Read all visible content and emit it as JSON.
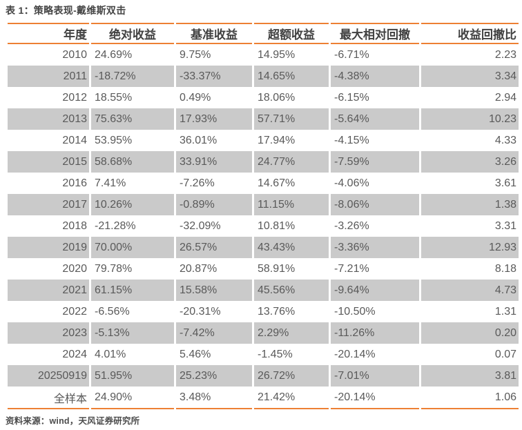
{
  "title": "表 1：策略表现-戴维斯双击",
  "source": "资料来源：wind，天风证券研究所",
  "colors": {
    "accent": "#ED8033",
    "row_alt": "#CACACA",
    "header_text": "#404040",
    "body_text": "#595959"
  },
  "table": {
    "columns": [
      "年度",
      "绝对收益",
      "基准收益",
      "超额收益",
      "最大相对回撤",
      "收益回撤比"
    ],
    "rows": [
      [
        "2010",
        "24.69%",
        "9.75%",
        "14.95%",
        "-6.71%",
        "2.23"
      ],
      [
        "2011",
        "-18.72%",
        "-33.37%",
        "14.65%",
        "-4.38%",
        "3.34"
      ],
      [
        "2012",
        "18.55%",
        "0.49%",
        "18.06%",
        "-6.15%",
        "2.94"
      ],
      [
        "2013",
        "75.63%",
        "17.93%",
        "57.71%",
        "-5.64%",
        "10.23"
      ],
      [
        "2014",
        "53.95%",
        "36.01%",
        "17.94%",
        "-4.15%",
        "4.33"
      ],
      [
        "2015",
        "58.68%",
        "33.91%",
        "24.77%",
        "-7.59%",
        "3.26"
      ],
      [
        "2016",
        "7.41%",
        "-7.26%",
        "14.67%",
        "-4.06%",
        "3.61"
      ],
      [
        "2017",
        "10.26%",
        "-0.89%",
        "11.15%",
        "-8.06%",
        "1.38"
      ],
      [
        "2018",
        "-21.28%",
        "-32.09%",
        "10.81%",
        "-3.26%",
        "3.31"
      ],
      [
        "2019",
        "70.00%",
        "26.57%",
        "43.43%",
        "-3.36%",
        "12.93"
      ],
      [
        "2020",
        "79.78%",
        "20.87%",
        "58.91%",
        "-7.21%",
        "8.18"
      ],
      [
        "2021",
        "61.15%",
        "15.58%",
        "45.56%",
        "-9.64%",
        "4.73"
      ],
      [
        "2022",
        "-6.56%",
        "-20.31%",
        "13.76%",
        "-10.50%",
        "1.31"
      ],
      [
        "2023",
        "-5.13%",
        "-7.42%",
        "2.29%",
        "-11.26%",
        "0.20"
      ],
      [
        "2024",
        "4.01%",
        "5.46%",
        "-1.45%",
        "-20.14%",
        "0.07"
      ],
      [
        "20250919",
        "51.95%",
        "25.23%",
        "26.72%",
        "-7.01%",
        "3.81"
      ],
      [
        "全样本",
        "24.90%",
        "3.48%",
        "21.42%",
        "-20.14%",
        "1.06"
      ]
    ]
  }
}
